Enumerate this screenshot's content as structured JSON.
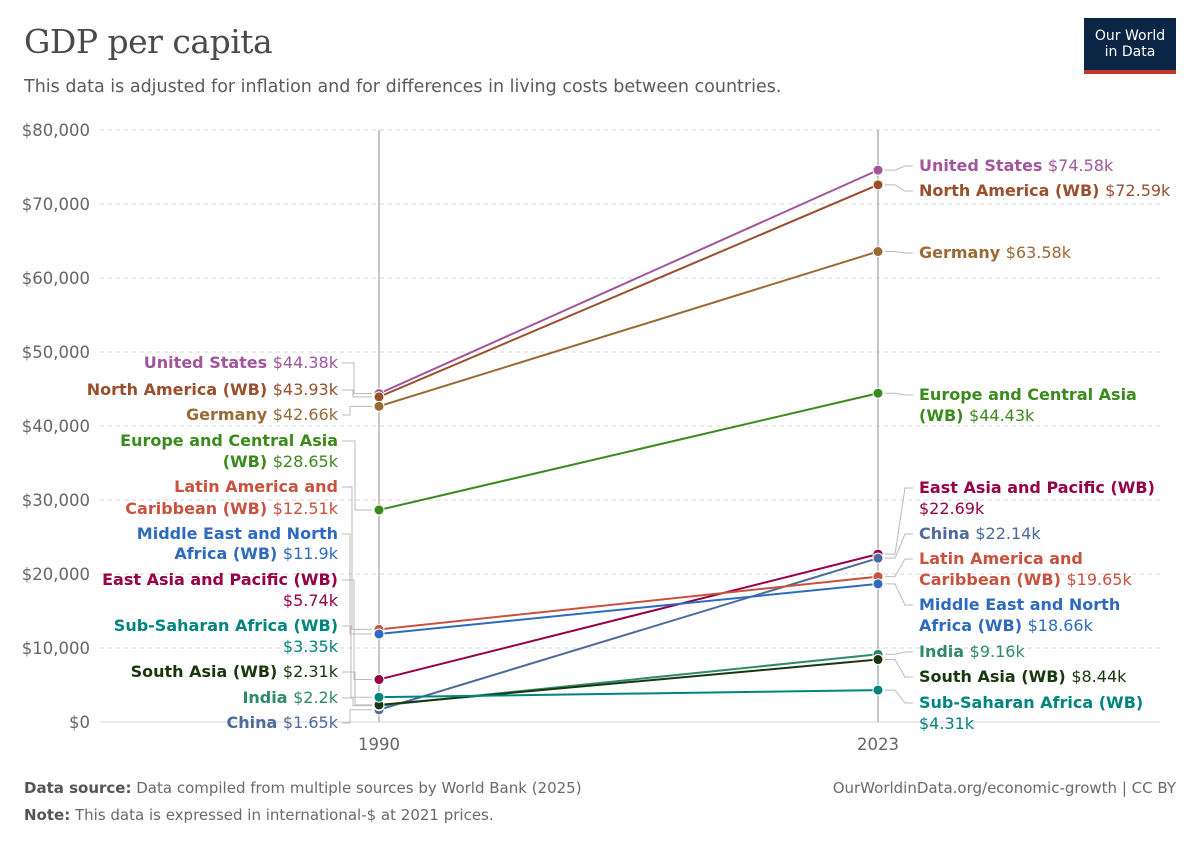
{
  "header": {
    "title": "GDP per capita",
    "subtitle": "This data is adjusted for inflation and for differences in living costs between countries."
  },
  "logo": {
    "line1": "Our World",
    "line2": "in Data"
  },
  "footer": {
    "source_label": "Data source:",
    "source_text": "Data compiled from multiple sources by World Bank (2025)",
    "note_label": "Note:",
    "note_text": "This data is expressed in international-$ at 2021 prices.",
    "url_text": "OurWorldinData.org/economic-growth | CC BY"
  },
  "chart_data": {
    "type": "line",
    "x": [
      "1990",
      "2023"
    ],
    "ylim": [
      0,
      80000
    ],
    "y_ticks": [
      0,
      10000,
      20000,
      30000,
      40000,
      50000,
      60000,
      70000,
      80000
    ],
    "y_tick_labels": [
      "$0",
      "$10,000",
      "$20,000",
      "$30,000",
      "$40,000",
      "$50,000",
      "$60,000",
      "$70,000",
      "$80,000"
    ],
    "grid": true,
    "series": [
      {
        "name": "United States",
        "color": "#a2559c",
        "values": [
          44380,
          74580
        ],
        "value_labels": [
          "$44.38k",
          "$74.58k"
        ]
      },
      {
        "name": "North America (WB)",
        "color": "#9a4f2d",
        "values": [
          43930,
          72590
        ],
        "value_labels": [
          "$43.93k",
          "$72.59k"
        ]
      },
      {
        "name": "Germany",
        "color": "#9a6a34",
        "values": [
          42660,
          63580
        ],
        "value_labels": [
          "$42.66k",
          "$63.58k"
        ]
      },
      {
        "name": "Europe and Central Asia (WB)",
        "color": "#3a8a1c",
        "values": [
          28650,
          44430
        ],
        "value_labels": [
          "$28.65k",
          "$44.43k"
        ]
      },
      {
        "name": "East Asia and Pacific (WB)",
        "color": "#970046",
        "values": [
          5740,
          22690
        ],
        "value_labels": [
          "$5.74k",
          "$22.69k"
        ]
      },
      {
        "name": "China",
        "color": "#4c6a9c",
        "values": [
          1650,
          22140
        ],
        "value_labels": [
          "$1.65k",
          "$22.14k"
        ]
      },
      {
        "name": "Latin America and Caribbean (WB)",
        "color": "#c8523f",
        "values": [
          12510,
          19650
        ],
        "value_labels": [
          "$12.51k",
          "$19.65k"
        ]
      },
      {
        "name": "Middle East and North Africa (WB)",
        "color": "#2e6bbf",
        "values": [
          11900,
          18660
        ],
        "value_labels": [
          "$11.9k",
          "$18.66k"
        ]
      },
      {
        "name": "India",
        "color": "#2f8a68",
        "values": [
          2200,
          9160
        ],
        "value_labels": [
          "$2.2k",
          "$9.16k"
        ]
      },
      {
        "name": "South Asia (WB)",
        "color": "#18370f",
        "values": [
          2310,
          8440
        ],
        "value_labels": [
          "$2.31k",
          "$8.44k"
        ]
      },
      {
        "name": "Sub-Saharan Africa (WB)",
        "color": "#00847e",
        "values": [
          3350,
          4310
        ],
        "value_labels": [
          "$3.35k",
          "$4.31k"
        ]
      }
    ]
  }
}
